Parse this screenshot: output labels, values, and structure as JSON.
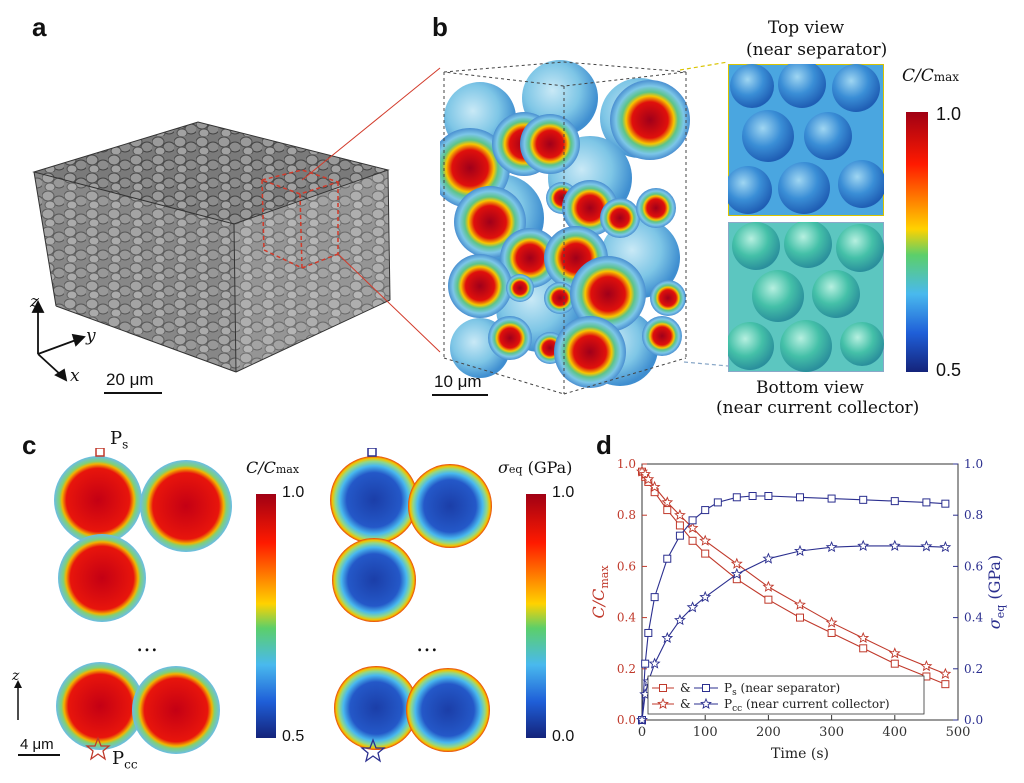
{
  "panels": {
    "a": {
      "letter": "a",
      "axes": {
        "z": "z",
        "y": "y",
        "x": "x"
      },
      "scale_bar": "20 μm"
    },
    "b": {
      "letter": "b",
      "top_view": {
        "line1": "Top view",
        "line2": "(near separator)"
      },
      "bottom_view": {
        "line1": "Bottom view",
        "line2": "(near current collector)"
      },
      "colorbar": {
        "title": "C/C",
        "title_sub": "max",
        "max": "1.0",
        "min": "0.5"
      },
      "scale_bar": "10 μm"
    },
    "c": {
      "letter": "c",
      "point_top": "P",
      "point_top_sub": "s",
      "point_bottom": "P",
      "point_bottom_sub": "cc",
      "ellipsis": "…",
      "colorbar1": {
        "title": "C/C",
        "title_sub": "max",
        "max": "1.0",
        "min": "0.5"
      },
      "colorbar2": {
        "title": "σ",
        "title_sub": "eq",
        "title_unit": " (GPa)",
        "max": "1.0",
        "min": "0.0"
      },
      "axis_label": "z",
      "scale_bar": "4 μm"
    },
    "d": {
      "letter": "d"
    }
  },
  "colors": {
    "conc": "#c0392b",
    "stress": "#2b2f8f",
    "cmap_high": "#b00018",
    "cmap_low": "#1a237e"
  },
  "chart_data": {
    "type": "line",
    "xlabel": "Time (s)",
    "ylabel_left": "C/C",
    "ylabel_left_sub": "max",
    "ylabel_right": "σ",
    "ylabel_right_sub": "eq",
    "ylabel_right_unit": " (GPa)",
    "xlim": [
      0,
      500
    ],
    "ylim": [
      0,
      1.0
    ],
    "xticks": [
      "0",
      "100",
      "200",
      "300",
      "400",
      "500"
    ],
    "yticks": [
      "0.0",
      "0.2",
      "0.4",
      "0.6",
      "0.8",
      "1.0"
    ],
    "legend": [
      {
        "amp": "&",
        "point": "P",
        "sub": "s",
        "desc": "(near separator)",
        "marker": "square"
      },
      {
        "amp": "&",
        "point": "P",
        "sub": "cc",
        "desc": "(near current collector)",
        "marker": "star"
      }
    ],
    "series": [
      {
        "axis": "left",
        "marker": "square",
        "color": "#c0392b",
        "x": [
          0,
          5,
          10,
          20,
          40,
          60,
          80,
          100,
          150,
          200,
          250,
          300,
          350,
          400,
          450,
          480
        ],
        "y": [
          0.97,
          0.95,
          0.93,
          0.89,
          0.82,
          0.76,
          0.7,
          0.65,
          0.55,
          0.47,
          0.4,
          0.34,
          0.28,
          0.22,
          0.17,
          0.14
        ]
      },
      {
        "axis": "left",
        "marker": "star",
        "color": "#c0392b",
        "x": [
          0,
          5,
          10,
          20,
          40,
          60,
          80,
          100,
          150,
          200,
          250,
          300,
          350,
          400,
          450,
          480
        ],
        "y": [
          0.97,
          0.96,
          0.94,
          0.91,
          0.85,
          0.8,
          0.75,
          0.7,
          0.61,
          0.52,
          0.45,
          0.38,
          0.32,
          0.26,
          0.21,
          0.18
        ]
      },
      {
        "axis": "right",
        "marker": "square",
        "color": "#2b2f8f",
        "x": [
          0,
          5,
          10,
          20,
          40,
          60,
          80,
          100,
          120,
          150,
          175,
          200,
          250,
          300,
          350,
          400,
          450,
          480
        ],
        "y": [
          0.0,
          0.22,
          0.34,
          0.48,
          0.63,
          0.72,
          0.78,
          0.82,
          0.85,
          0.87,
          0.875,
          0.875,
          0.87,
          0.865,
          0.86,
          0.855,
          0.85,
          0.845
        ]
      },
      {
        "axis": "right",
        "marker": "star",
        "color": "#2b2f8f",
        "x": [
          0,
          5,
          10,
          20,
          40,
          60,
          80,
          100,
          150,
          200,
          250,
          300,
          350,
          400,
          450,
          480
        ],
        "y": [
          0.0,
          0.1,
          0.15,
          0.22,
          0.32,
          0.39,
          0.44,
          0.48,
          0.57,
          0.63,
          0.66,
          0.675,
          0.68,
          0.68,
          0.678,
          0.675
        ]
      }
    ]
  }
}
